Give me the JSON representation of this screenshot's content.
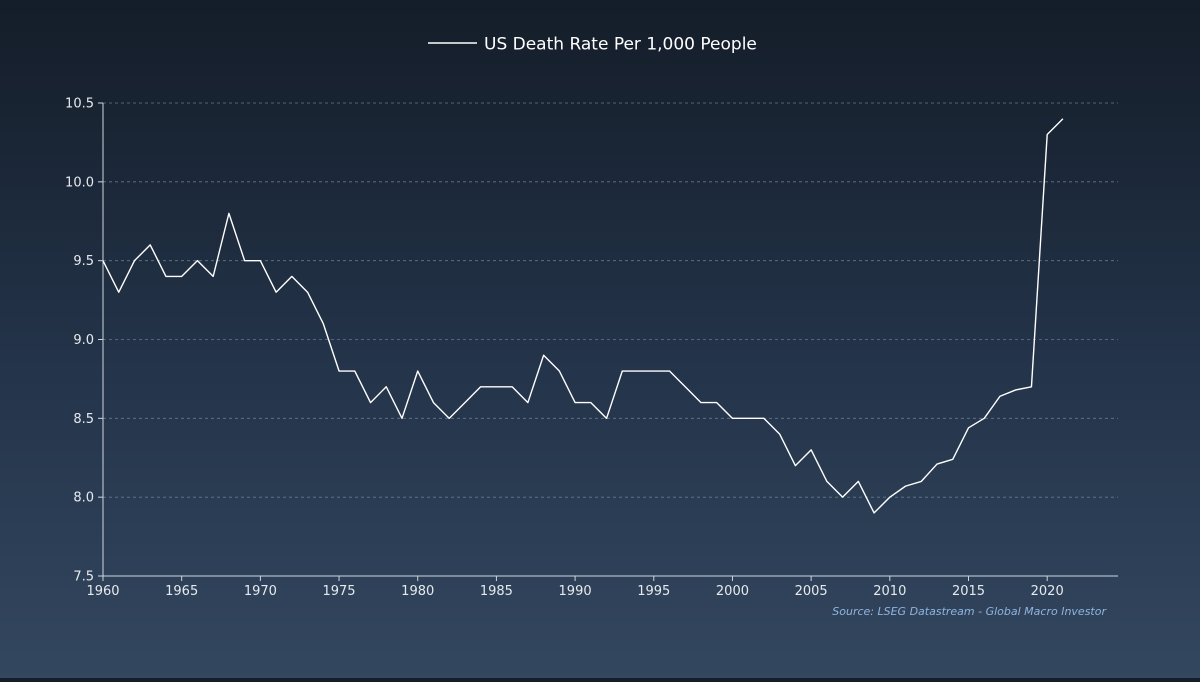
{
  "chart_data": {
    "type": "line",
    "title": "",
    "xlabel": "",
    "ylabel": "",
    "xlim": [
      1960,
      2024.5
    ],
    "ylim": [
      7.5,
      10.5
    ],
    "x_ticks": [
      "1960",
      "1965",
      "1970",
      "1975",
      "1980",
      "1985",
      "1990",
      "1995",
      "2000",
      "2005",
      "2010",
      "2015",
      "2020"
    ],
    "y_ticks": [
      "7.5",
      "8.0",
      "8.5",
      "9.0",
      "9.5",
      "10.0",
      "10.5"
    ],
    "grid": "horizontal-dashed",
    "legend_position": "top-center",
    "series": [
      {
        "name": "US Death Rate Per 1,000 People",
        "color": "#ffffff",
        "x": [
          1960,
          1961,
          1962,
          1963,
          1964,
          1965,
          1966,
          1967,
          1968,
          1969,
          1970,
          1971,
          1972,
          1973,
          1974,
          1975,
          1976,
          1977,
          1978,
          1979,
          1980,
          1981,
          1982,
          1983,
          1984,
          1985,
          1986,
          1987,
          1988,
          1989,
          1990,
          1991,
          1992,
          1993,
          1994,
          1995,
          1996,
          1997,
          1998,
          1999,
          2000,
          2001,
          2002,
          2003,
          2004,
          2005,
          2006,
          2007,
          2008,
          2009,
          2010,
          2011,
          2012,
          2013,
          2014,
          2015,
          2016,
          2017,
          2018,
          2019,
          2020,
          2021
        ],
        "values": [
          9.5,
          9.3,
          9.5,
          9.6,
          9.4,
          9.4,
          9.5,
          9.4,
          9.8,
          9.5,
          9.5,
          9.3,
          9.4,
          9.3,
          9.1,
          8.8,
          8.8,
          8.6,
          8.7,
          8.5,
          8.8,
          8.6,
          8.5,
          8.6,
          8.7,
          8.7,
          8.7,
          8.6,
          8.9,
          8.8,
          8.6,
          8.6,
          8.5,
          8.8,
          8.8,
          8.8,
          8.8,
          8.7,
          8.6,
          8.6,
          8.5,
          8.5,
          8.5,
          8.4,
          8.2,
          8.3,
          8.1,
          8.0,
          8.1,
          7.9,
          8.0,
          8.07,
          8.1,
          8.21,
          8.24,
          8.44,
          8.5,
          8.64,
          8.68,
          8.7,
          10.3,
          10.4
        ]
      }
    ],
    "source_note": "Source: LSEG Datastream - Global Macro Investor"
  },
  "colors": {
    "axis": "#cfd6df",
    "grid": "#66788c",
    "tick_text": "#e6eaee",
    "line": "#ffffff",
    "source": "#8fb4e0"
  }
}
